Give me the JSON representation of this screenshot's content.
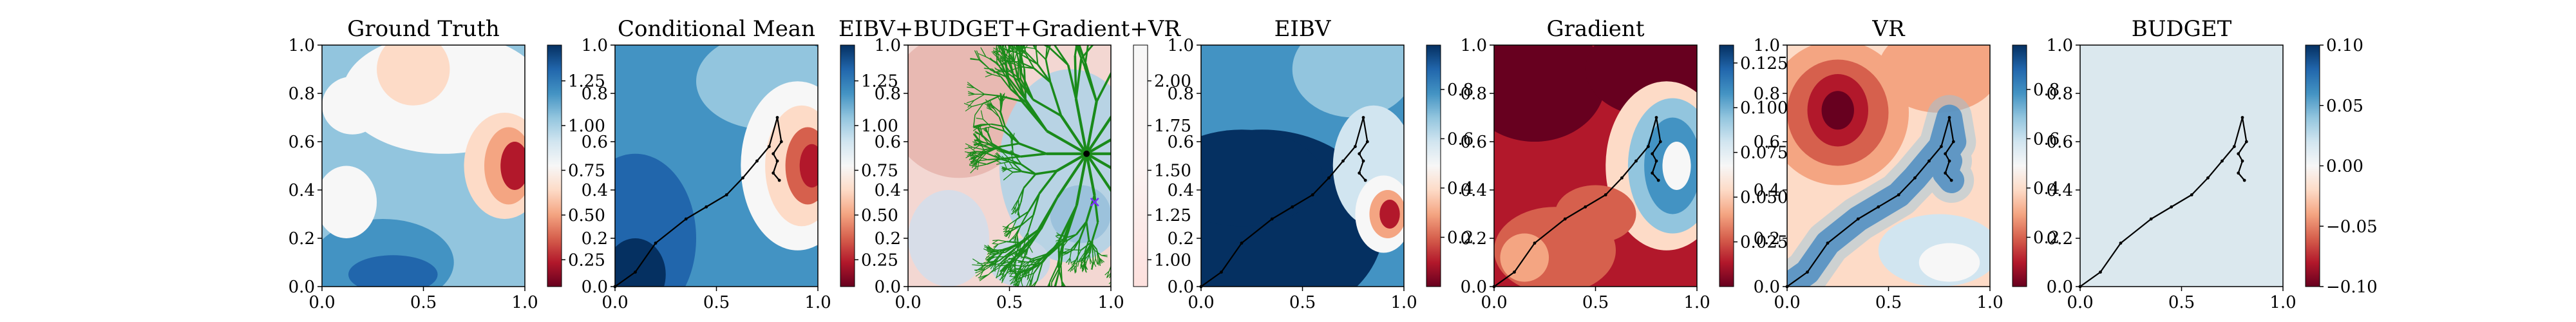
{
  "chart_data": [
    {
      "type": "heatmap",
      "title": "Ground Truth",
      "x_ticks": [
        "0.0",
        "0.5",
        "1.0"
      ],
      "y_ticks": [
        "0.0",
        "0.2",
        "0.4",
        "0.6",
        "0.8",
        "1.0"
      ],
      "xlim": [
        0,
        1
      ],
      "ylim": [
        0,
        1
      ],
      "colormap": "RdBu",
      "colorbar": {
        "range": [
          0.1,
          1.45
        ],
        "ticks": [
          "0.25",
          "0.50",
          "0.75",
          "1.00",
          "1.25"
        ]
      },
      "field_description": "mostly mid-to-high values (light/mid blue) with a low-value red pocket near x=0.95, y=0.5 and scattered light patches",
      "path": []
    },
    {
      "type": "heatmap",
      "title": "Conditional Mean",
      "x_ticks": [
        "0.0",
        "0.5",
        "1.0"
      ],
      "y_ticks": [
        "0.0",
        "0.2",
        "0.4",
        "0.6",
        "0.8",
        "1.0"
      ],
      "xlim": [
        0,
        1
      ],
      "ylim": [
        0,
        1
      ],
      "colormap": "RdBu",
      "colorbar": {
        "range": [
          0.1,
          1.45
        ],
        "ticks": [
          "0.25",
          "0.50",
          "0.75",
          "1.00",
          "1.25"
        ]
      },
      "field_description": "smooth blue field with a red low-value region around x=0.95, y=0.5",
      "path": [
        [
          0.0,
          0.0
        ],
        [
          0.1,
          0.06
        ],
        [
          0.2,
          0.18
        ],
        [
          0.35,
          0.28
        ],
        [
          0.45,
          0.33
        ],
        [
          0.55,
          0.38
        ],
        [
          0.63,
          0.45
        ],
        [
          0.7,
          0.52
        ],
        [
          0.76,
          0.58
        ],
        [
          0.8,
          0.7
        ],
        [
          0.82,
          0.6
        ],
        [
          0.78,
          0.55
        ],
        [
          0.8,
          0.52
        ],
        [
          0.78,
          0.47
        ],
        [
          0.81,
          0.44
        ]
      ]
    },
    {
      "type": "heatmap",
      "title": "EIBV+BUDGET+Gradient+VR",
      "x_ticks": [
        "0.0",
        "0.5",
        "1.0"
      ],
      "y_ticks": [
        "0.0",
        "0.2",
        "0.4",
        "0.6",
        "0.8",
        "1.0"
      ],
      "xlim": [
        0,
        1
      ],
      "ylim": [
        0,
        1
      ],
      "colormap": "RdBu",
      "colorbar": {
        "range": [
          0.85,
          2.2
        ],
        "ticks": [
          "1.00",
          "1.25",
          "1.50",
          "1.75",
          "2.00"
        ]
      },
      "field_description": "combined cost field (pale red to light blue) overlaid with a green branching tree of candidate paths rooted near x=0.88, y=0.55",
      "tree_root": [
        0.88,
        0.55
      ],
      "target_marker": [
        0.92,
        0.35
      ],
      "path": []
    },
    {
      "type": "heatmap",
      "title": "EIBV",
      "x_ticks": [
        "0.0",
        "0.5",
        "1.0"
      ],
      "y_ticks": [
        "0.0",
        "0.2",
        "0.4",
        "0.6",
        "0.8",
        "1.0"
      ],
      "xlim": [
        0,
        1
      ],
      "ylim": [
        0,
        1
      ],
      "colormap": "RdBu",
      "colorbar": {
        "range": [
          0.0,
          0.98
        ],
        "ticks": [
          "0.2",
          "0.4",
          "0.6",
          "0.8"
        ]
      },
      "field_description": "dark blue (high) over the lower-left, mid blue upper area, red low-value region near x=0.9, y=0.3",
      "path": [
        [
          0.0,
          0.0
        ],
        [
          0.1,
          0.06
        ],
        [
          0.2,
          0.18
        ],
        [
          0.35,
          0.28
        ],
        [
          0.45,
          0.33
        ],
        [
          0.55,
          0.38
        ],
        [
          0.63,
          0.45
        ],
        [
          0.7,
          0.52
        ],
        [
          0.76,
          0.58
        ],
        [
          0.8,
          0.7
        ],
        [
          0.82,
          0.6
        ],
        [
          0.78,
          0.55
        ],
        [
          0.8,
          0.52
        ],
        [
          0.78,
          0.47
        ],
        [
          0.81,
          0.44
        ]
      ]
    },
    {
      "type": "heatmap",
      "title": "Gradient",
      "x_ticks": [
        "0.0",
        "0.5",
        "1.0"
      ],
      "y_ticks": [
        "0.0",
        "0.2",
        "0.4",
        "0.6",
        "0.8",
        "1.0"
      ],
      "xlim": [
        0,
        1
      ],
      "ylim": [
        0,
        1
      ],
      "colormap": "RdBu",
      "colorbar": {
        "range": [
          0.0,
          0.135
        ],
        "ticks": [
          "0.025",
          "0.050",
          "0.075",
          "0.100",
          "0.125"
        ]
      },
      "field_description": "mostly dark-red low gradient with a ring of high (blue) gradient around x=0.9, y=0.5",
      "path": [
        [
          0.0,
          0.0
        ],
        [
          0.1,
          0.06
        ],
        [
          0.2,
          0.18
        ],
        [
          0.35,
          0.28
        ],
        [
          0.45,
          0.33
        ],
        [
          0.55,
          0.38
        ],
        [
          0.63,
          0.45
        ],
        [
          0.7,
          0.52
        ],
        [
          0.76,
          0.58
        ],
        [
          0.8,
          0.7
        ],
        [
          0.82,
          0.6
        ],
        [
          0.78,
          0.55
        ],
        [
          0.8,
          0.52
        ],
        [
          0.78,
          0.47
        ],
        [
          0.81,
          0.44
        ]
      ]
    },
    {
      "type": "heatmap",
      "title": "VR",
      "x_ticks": [
        "0.0",
        "0.5",
        "1.0"
      ],
      "y_ticks": [
        "0.0",
        "0.2",
        "0.4",
        "0.6",
        "0.8",
        "1.0"
      ],
      "xlim": [
        0,
        1
      ],
      "ylim": [
        0,
        1
      ],
      "colormap": "RdBu",
      "colorbar": {
        "range": [
          0.0,
          0.98
        ],
        "ticks": [
          "0.2",
          "0.4",
          "0.6",
          "0.8"
        ]
      },
      "field_description": "dark red blob upper-left near x=0.25, y=0.75, blue band along the sampled diagonal path, light pinks elsewhere",
      "path": [
        [
          0.0,
          0.0
        ],
        [
          0.1,
          0.06
        ],
        [
          0.2,
          0.18
        ],
        [
          0.35,
          0.28
        ],
        [
          0.45,
          0.33
        ],
        [
          0.55,
          0.38
        ],
        [
          0.63,
          0.45
        ],
        [
          0.7,
          0.52
        ],
        [
          0.76,
          0.58
        ],
        [
          0.8,
          0.7
        ],
        [
          0.82,
          0.6
        ],
        [
          0.78,
          0.55
        ],
        [
          0.8,
          0.52
        ],
        [
          0.78,
          0.47
        ],
        [
          0.81,
          0.44
        ]
      ]
    },
    {
      "type": "heatmap",
      "title": "BUDGET",
      "x_ticks": [
        "0.0",
        "0.5",
        "1.0"
      ],
      "y_ticks": [
        "0.0",
        "0.2",
        "0.4",
        "0.6",
        "0.8",
        "1.0"
      ],
      "xlim": [
        0,
        1
      ],
      "ylim": [
        0,
        1
      ],
      "colormap": "RdBu",
      "colorbar": {
        "range": [
          -0.1,
          0.1
        ],
        "ticks": [
          "−0.10",
          "−0.05",
          "0.00",
          "0.05",
          "0.10"
        ]
      },
      "field_description": "uniform field at 0.00",
      "path": [
        [
          0.0,
          0.0
        ],
        [
          0.1,
          0.06
        ],
        [
          0.2,
          0.18
        ],
        [
          0.35,
          0.28
        ],
        [
          0.45,
          0.33
        ],
        [
          0.55,
          0.38
        ],
        [
          0.63,
          0.45
        ],
        [
          0.7,
          0.52
        ],
        [
          0.76,
          0.58
        ],
        [
          0.8,
          0.7
        ],
        [
          0.82,
          0.6
        ],
        [
          0.78,
          0.55
        ],
        [
          0.8,
          0.52
        ],
        [
          0.78,
          0.47
        ],
        [
          0.81,
          0.44
        ]
      ]
    }
  ],
  "colors": {
    "dark_red": "#67001f",
    "red": "#b2182b",
    "mid_red": "#d6604d",
    "light_red": "#f4a582",
    "pale_red": "#fddbc7",
    "near_white": "#f7f7f7",
    "pale_blue": "#d1e5f0",
    "light_blue": "#92c5de",
    "mid_blue": "#4393c3",
    "blue": "#2166ac",
    "dark_blue": "#053061",
    "tree_green": "#1a8a1a",
    "path": "#000000",
    "budget_fill": "#dbe8ee",
    "marker": "#7b2cff"
  }
}
